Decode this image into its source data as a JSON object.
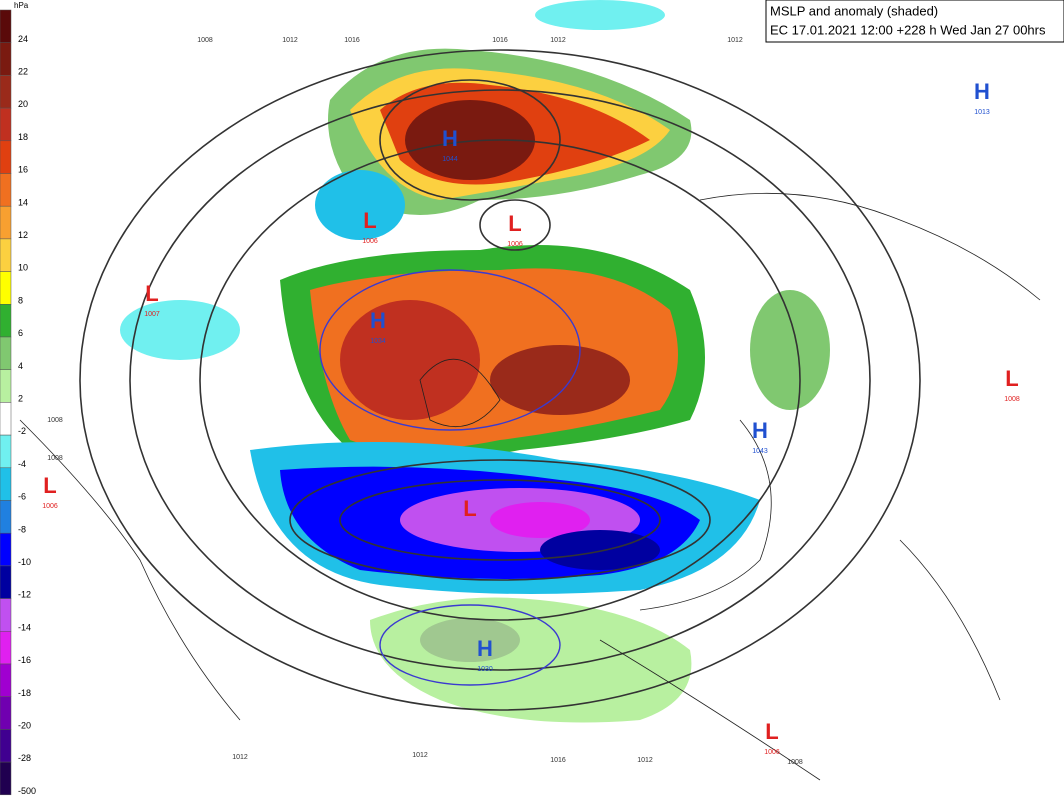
{
  "header": {
    "title": "MSLP and anomaly (shaded)",
    "run": "EC 17.01.2021 12:00 +228 h Wed Jan 27 00hrs"
  },
  "legend": {
    "unit": "hPa",
    "labels": [
      "24",
      "22",
      "20",
      "18",
      "16",
      "14",
      "12",
      "10",
      "8",
      "6",
      "4",
      "2",
      "-2",
      "-4",
      "-6",
      "-8",
      "-10",
      "-12",
      "-14",
      "-16",
      "-18",
      "-20",
      "-28",
      "-500"
    ]
  },
  "centers": [
    {
      "label": "H",
      "value": "1044"
    },
    {
      "label": "L",
      "value": "1006"
    },
    {
      "label": "L",
      "value": "1006"
    },
    {
      "label": "L",
      "value": "1007"
    },
    {
      "label": "H",
      "value": "1034"
    },
    {
      "label": "L",
      "value": "1008"
    },
    {
      "label": "H",
      "value": "1043"
    },
    {
      "label": "L",
      "value": "1006"
    },
    {
      "label": "H",
      "value": "1013"
    },
    {
      "label": "H",
      "value": "1030"
    },
    {
      "label": "L",
      "value": "1006"
    },
    {
      "label": "L"
    }
  ],
  "isobar_labels": [
    "1008",
    "1012",
    "1016",
    "1016",
    "1012",
    "1012",
    "1008",
    "1008",
    "1012",
    "1012",
    "1016",
    "1012",
    "1008"
  ]
}
